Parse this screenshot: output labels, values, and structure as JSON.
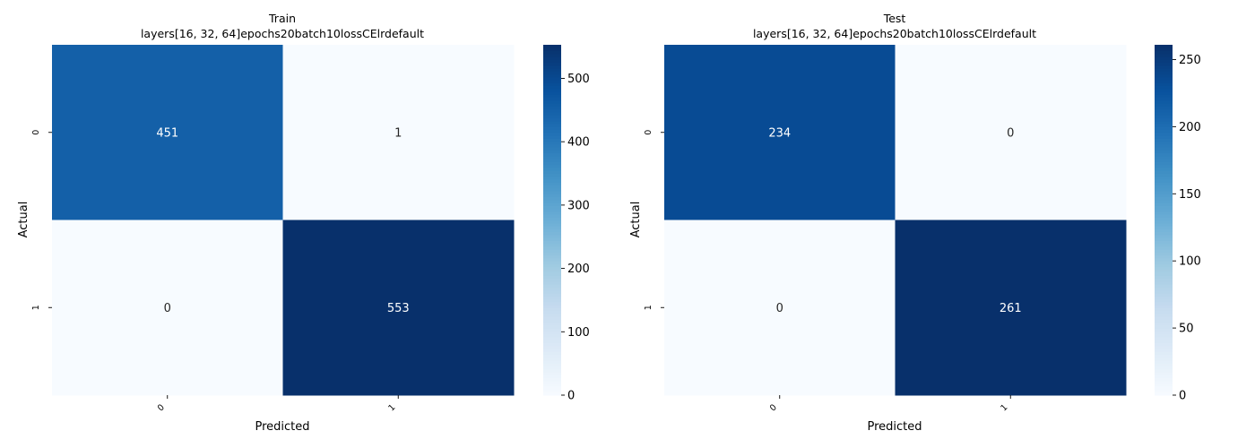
{
  "colormap": "Blues",
  "colors": {
    "blues_stops": [
      "#f7fbff",
      "#deebf7",
      "#c6dbef",
      "#9ecae1",
      "#6baed6",
      "#4292c6",
      "#2171b5",
      "#08519c",
      "#08306b"
    ],
    "text_dark": "#262626",
    "text_light": "#ffffff"
  },
  "chart_data": [
    {
      "type": "heatmap",
      "title": "Train",
      "subtitle": "layers[16, 32, 64]epochs20batch10lossCElrdefault",
      "xlabel": "Predicted",
      "ylabel": "Actual",
      "x_categories": [
        "0",
        "1"
      ],
      "y_categories": [
        "0",
        "1"
      ],
      "values": [
        [
          451,
          1
        ],
        [
          0,
          553
        ]
      ],
      "vmin": 0,
      "vmax": 553,
      "colorbar_ticks": [
        0,
        100,
        200,
        300,
        400,
        500
      ]
    },
    {
      "type": "heatmap",
      "title": "Test",
      "subtitle": "layers[16, 32, 64]epochs20batch10lossCElrdefault",
      "xlabel": "Predicted",
      "ylabel": "Actual",
      "x_categories": [
        "0",
        "1"
      ],
      "y_categories": [
        "0",
        "1"
      ],
      "values": [
        [
          234,
          0
        ],
        [
          0,
          261
        ]
      ],
      "vmin": 0,
      "vmax": 261,
      "colorbar_ticks": [
        0,
        50,
        100,
        150,
        200,
        250
      ]
    }
  ]
}
